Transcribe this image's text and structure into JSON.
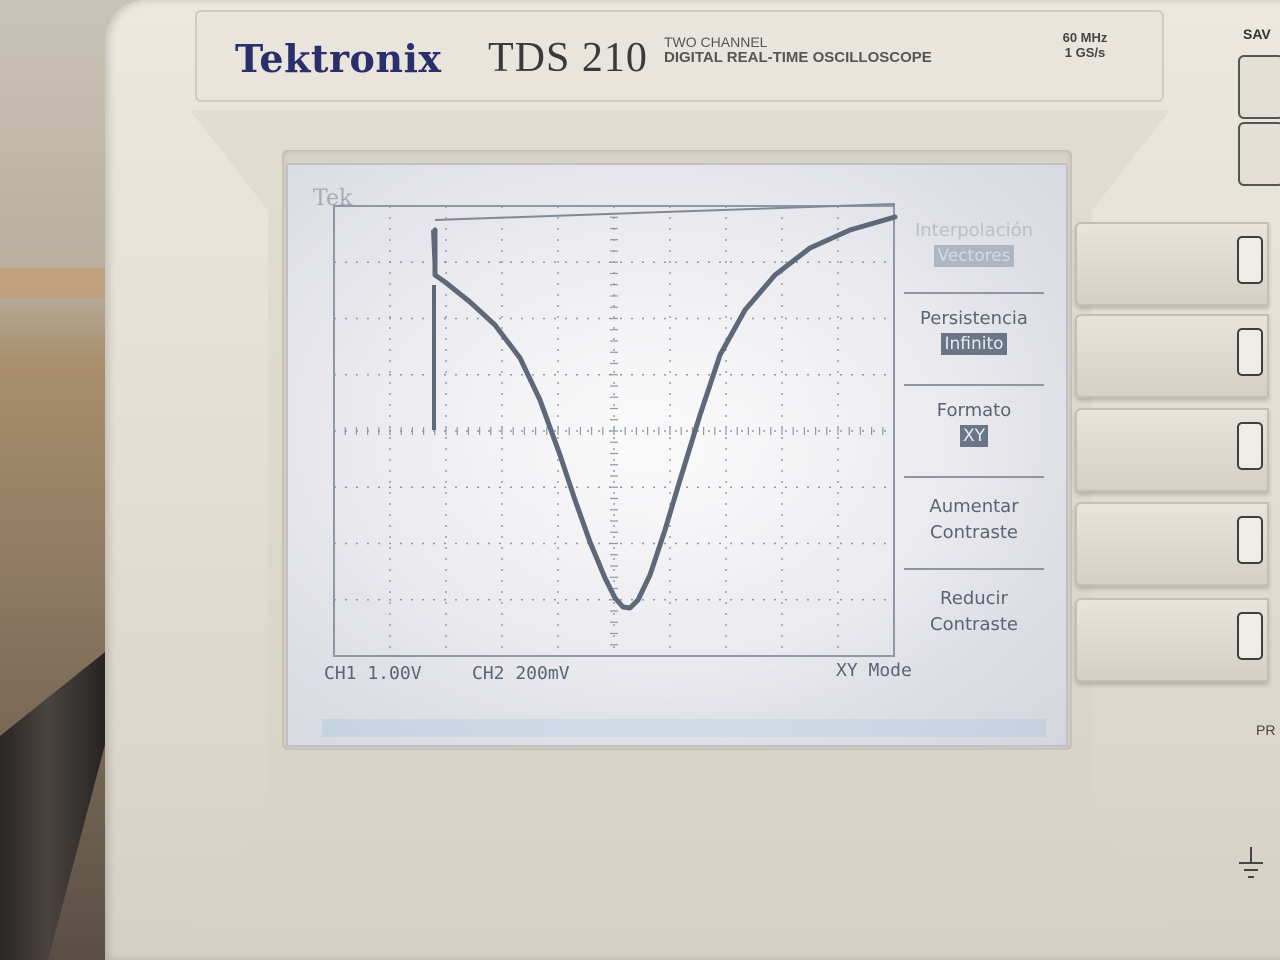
{
  "device": {
    "brand": "Tektronix",
    "model": "TDS 210",
    "description_line1": "TWO CHANNEL",
    "description_line2": "DIGITAL REAL-TIME OSCILLOSCOPE",
    "spec_bandwidth": "60 MHz",
    "spec_sample_rate": "1 GS/s",
    "save_label": "SAV",
    "pre_label": "PR"
  },
  "screen": {
    "tek_label": "Tek",
    "ch1_scale": "CH1 1.00V",
    "ch2_scale": "CH2 200mV",
    "mode_label": "XY Mode"
  },
  "menu": {
    "items": [
      {
        "title": "Interpolación",
        "value": "Vectores"
      },
      {
        "title": "Persistencia",
        "value": "Infinito"
      },
      {
        "title": "Formato",
        "value": "XY"
      },
      {
        "title_line1": "Aumentar",
        "title_line2": "Contraste"
      },
      {
        "title_line1": "Reducir",
        "title_line2": "Contraste"
      }
    ]
  },
  "colors": {
    "trace": "#5e6878",
    "screen_bg": "#ececf0",
    "brand": "#2a2f6b"
  }
}
